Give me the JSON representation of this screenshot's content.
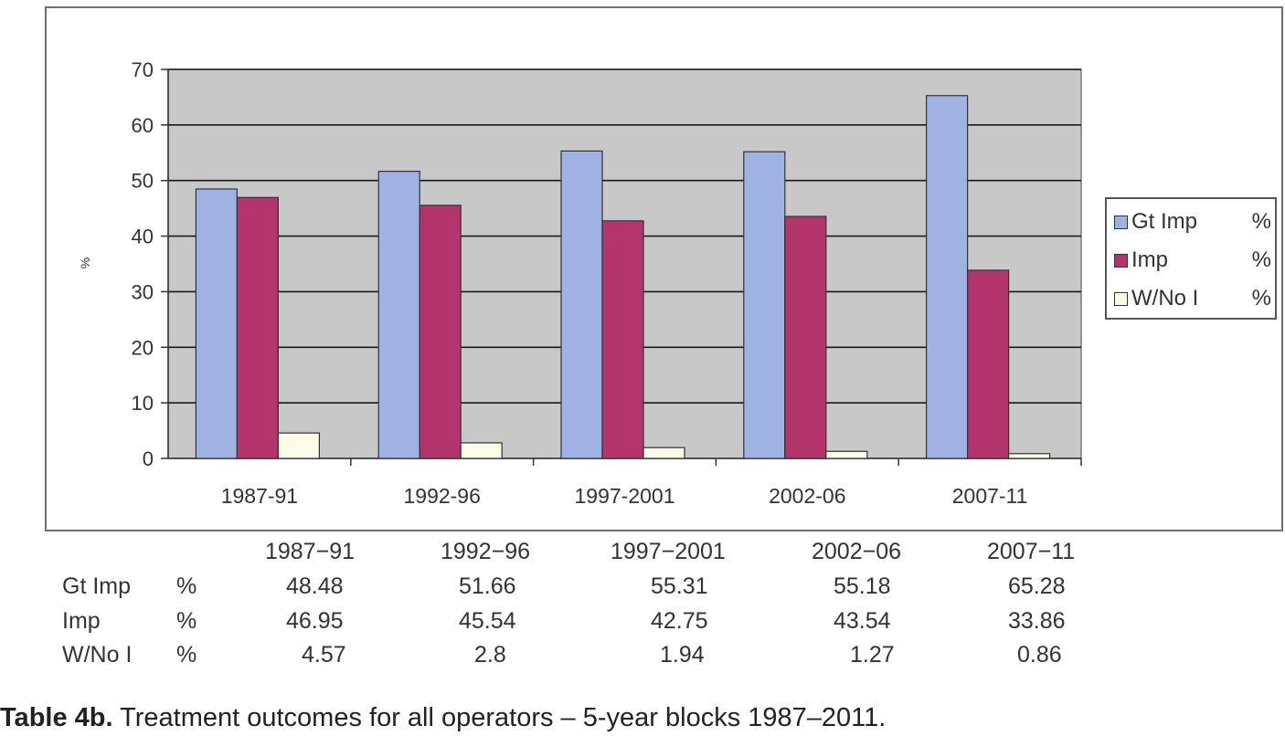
{
  "chart_data": {
    "type": "bar",
    "categories": [
      "1987-91",
      "1992-96",
      "1997-2001",
      "2002-06",
      "2007-11"
    ],
    "series": [
      {
        "name": "Gt Imp",
        "unit": "%",
        "values": [
          48.48,
          51.66,
          55.31,
          55.18,
          65.28
        ],
        "color": "#9fb2e4"
      },
      {
        "name": "Imp",
        "unit": "%",
        "values": [
          46.95,
          45.54,
          42.75,
          43.54,
          33.86
        ],
        "color": "#b3356b"
      },
      {
        "name": "W/No I",
        "unit": "%",
        "values": [
          4.57,
          2.8,
          1.94,
          1.27,
          0.86
        ],
        "color": "#fbfbe6"
      }
    ],
    "ylabel": "%",
    "ylim": [
      0,
      70
    ],
    "yticks": [
      "0",
      "10",
      "20",
      "30",
      "40",
      "50",
      "60",
      "70"
    ],
    "grid": true,
    "plot_background": "#c8c8c8",
    "legend_position": "right"
  },
  "table": {
    "columns": [
      "1987−91",
      "1992−96",
      "1997−2001",
      "2002−06",
      "2007−11"
    ],
    "rows": [
      {
        "label": "Gt Imp",
        "unit": "%",
        "values": [
          "48.48",
          "51.66",
          "55.31",
          "55.18",
          "65.28"
        ]
      },
      {
        "label": "Imp",
        "unit": "%",
        "values": [
          "46.95",
          "45.54",
          "42.75",
          "43.54",
          "33.86"
        ]
      },
      {
        "label": "W/No I",
        "unit": "%",
        "values": [
          "4.57",
          "2.8",
          "1.94",
          "1.27",
          "0.86"
        ]
      }
    ]
  },
  "caption": {
    "label": "Table 4b.",
    "text": " Treatment outcomes for all operators – 5-year blocks 1987–2011."
  }
}
